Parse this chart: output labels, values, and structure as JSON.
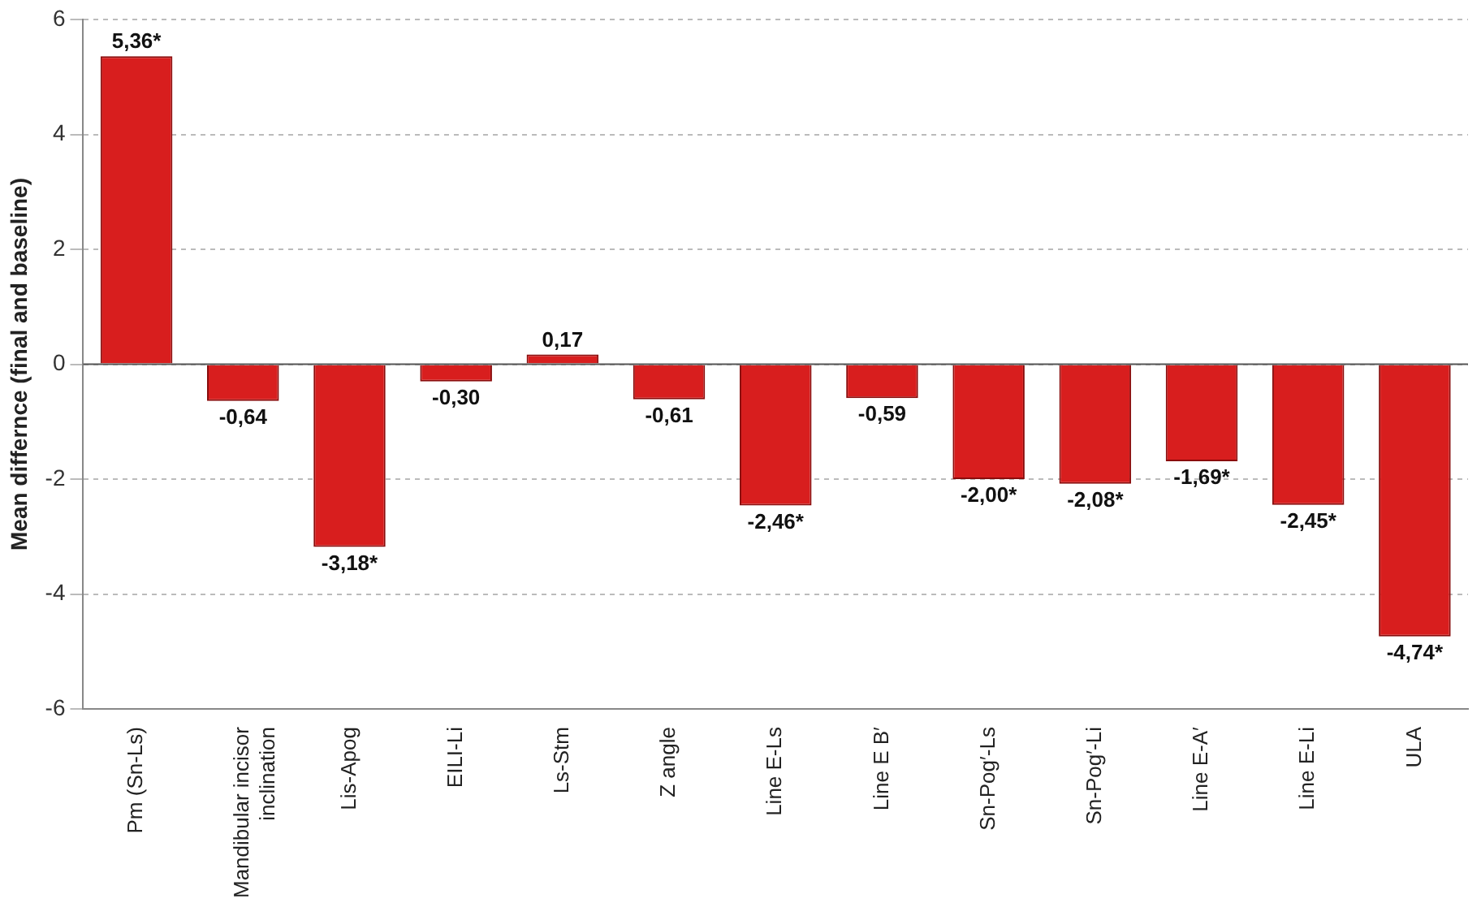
{
  "chart_data": {
    "type": "bar",
    "ylabel": "Mean differnce (final and baseline)",
    "categories": [
      "Pm (Sn-Ls)",
      "Mandibular incisor inclination",
      "Lis-Apog",
      "EILI-Li",
      "Ls-Stm",
      "Z angle",
      "Line E-Ls",
      "Line E B′",
      "Sn-Pog′-Ls",
      "Sn-Pog′-Li",
      "Line E-A′",
      "Line E-Li",
      "ULA"
    ],
    "values": [
      5.36,
      -0.64,
      -3.18,
      -0.3,
      0.17,
      -0.61,
      -2.46,
      -0.59,
      -2.0,
      -2.08,
      -1.69,
      -2.45,
      -4.74
    ],
    "value_labels": [
      "5,36*",
      "-0,64",
      "-3,18*",
      "-0,30",
      "0,17",
      "-0,61",
      "-2,46*",
      "-0,59",
      "-2,00*",
      "-2,08*",
      "-1,69*",
      "-2,45*",
      "-4,74*"
    ],
    "color": "#d81e1e",
    "ylim": [
      -6,
      6
    ],
    "yticks": [
      -6,
      -4,
      -2,
      0,
      2,
      4,
      6
    ],
    "grid": "y",
    "ref_lines": [
      {
        "axis": "y",
        "value": 0,
        "color": "#555555"
      }
    ]
  }
}
